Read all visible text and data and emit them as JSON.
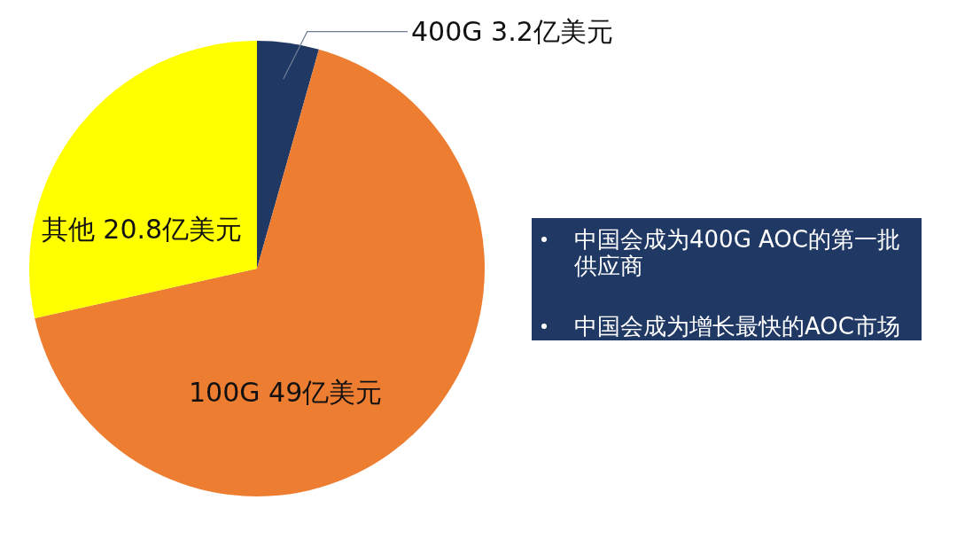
{
  "chart_data": [
    {
      "type": "pie",
      "categories": [
        "400G",
        "100G",
        "其他"
      ],
      "values": [
        3.2,
        49,
        20.8
      ],
      "value_labels": [
        "3.2亿美元",
        "49亿美元",
        "20.8亿美元"
      ],
      "colors": [
        "#203864",
        "#ed7d31",
        "#ffff00"
      ]
    },
    {
      "type": "other",
      "annotations": [
        "中国会成为400G AOC的第一批供应商",
        "中国会成为增长最快的AOC市场"
      ]
    }
  ]
}
